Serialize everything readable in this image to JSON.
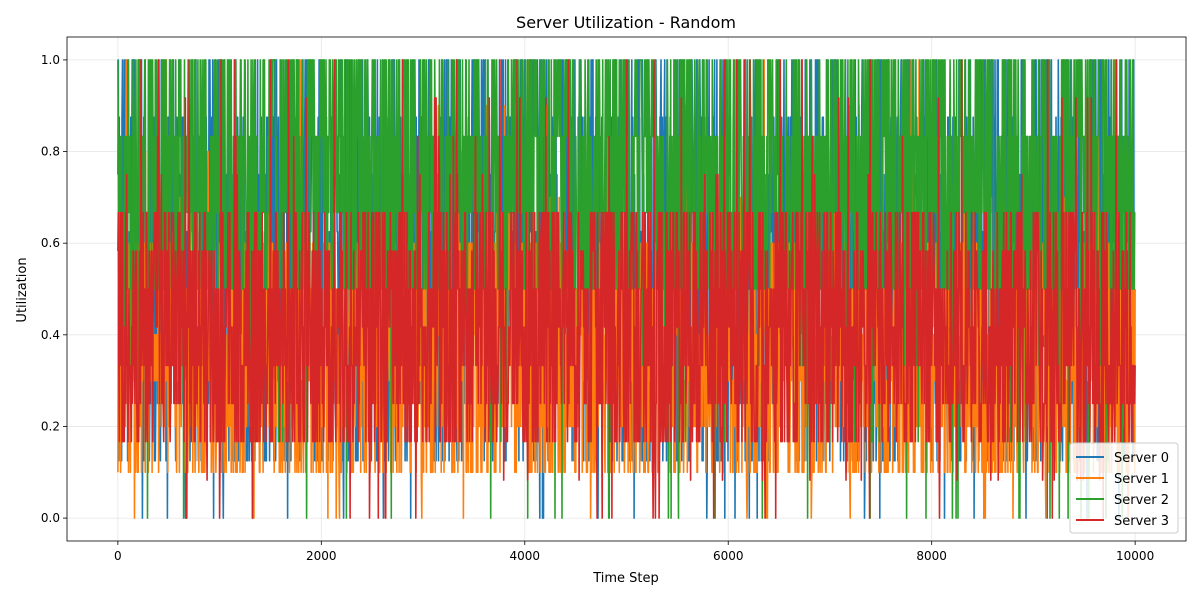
{
  "chart_data": {
    "type": "line",
    "title": "Server Utilization - Random",
    "xlabel": "Time Step",
    "ylabel": "Utilization",
    "xlim": [
      -500,
      10500
    ],
    "ylim": [
      -0.05,
      1.05
    ],
    "x_ticks": [
      0,
      2000,
      4000,
      6000,
      8000,
      10000
    ],
    "x_tick_labels": [
      "0",
      "2000",
      "4000",
      "6000",
      "8000",
      "10000"
    ],
    "y_ticks": [
      0.0,
      0.2,
      0.4,
      0.6,
      0.8,
      1.0
    ],
    "y_tick_labels": [
      "0.0",
      "0.2",
      "0.4",
      "0.6",
      "0.8",
      "1.0"
    ],
    "grid": true,
    "legend_position": "lower-right",
    "x_range": [
      0,
      10000
    ],
    "series": [
      {
        "name": "Server 0",
        "color": "#1f77b4",
        "typical_range": [
          0.125,
          1.0
        ],
        "mean": 0.72,
        "levels": [
          0,
          0.125,
          0.25,
          0.375,
          0.5,
          0.625,
          0.75,
          0.875,
          1.0
        ]
      },
      {
        "name": "Server 1",
        "color": "#ff7f0e",
        "typical_range": [
          0.1,
          0.6
        ],
        "mean": 0.33,
        "levels": [
          0,
          0.1,
          0.2,
          0.3,
          0.4,
          0.5,
          0.6,
          0.7,
          0.8,
          0.9,
          1.0
        ]
      },
      {
        "name": "Server 2",
        "color": "#2ca02c",
        "typical_range": [
          0.5,
          1.0
        ],
        "mean": 0.82,
        "levels": [
          0,
          0.167,
          0.333,
          0.5,
          0.667,
          0.833,
          1.0
        ]
      },
      {
        "name": "Server 3",
        "color": "#d62728",
        "typical_range": [
          0.167,
          0.667
        ],
        "mean": 0.38,
        "levels": [
          0,
          0.083,
          0.167,
          0.25,
          0.333,
          0.417,
          0.5,
          0.583,
          0.667,
          0.75,
          0.833,
          0.917,
          1.0
        ]
      }
    ]
  }
}
